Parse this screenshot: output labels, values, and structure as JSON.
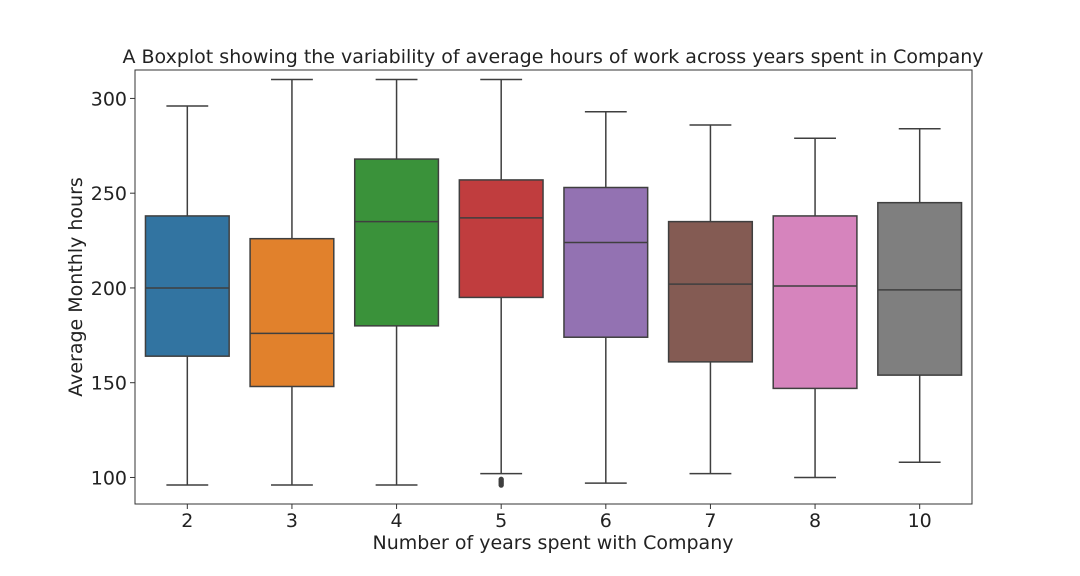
{
  "chart_data": {
    "type": "box",
    "title": "A Boxplot showing the variability of average hours of work across years spent in Company",
    "xlabel": "Number of years spent with Company",
    "ylabel": "Average Monthly hours",
    "ylim": [
      86,
      315
    ],
    "yticks": [
      100,
      150,
      200,
      250,
      300
    ],
    "grid": false,
    "categories": [
      "2",
      "3",
      "4",
      "5",
      "6",
      "7",
      "8",
      "10"
    ],
    "colors": [
      "#3274a1",
      "#e1812c",
      "#3a923a",
      "#c03d3e",
      "#9372b2",
      "#845b53",
      "#d684bd",
      "#7f7f7f"
    ],
    "boxes": [
      {
        "whisker_low": 96,
        "q1": 164,
        "median": 200,
        "q3": 238,
        "whisker_high": 296,
        "outliers": []
      },
      {
        "whisker_low": 96,
        "q1": 148,
        "median": 176,
        "q3": 226,
        "whisker_high": 310,
        "outliers": []
      },
      {
        "whisker_low": 96,
        "q1": 180,
        "median": 235,
        "q3": 268,
        "whisker_high": 310,
        "outliers": []
      },
      {
        "whisker_low": 102,
        "q1": 195,
        "median": 237,
        "q3": 257,
        "whisker_high": 310,
        "outliers": [
          96,
          97,
          98,
          99
        ]
      },
      {
        "whisker_low": 97,
        "q1": 174,
        "median": 224,
        "q3": 253,
        "whisker_high": 293,
        "outliers": []
      },
      {
        "whisker_low": 102,
        "q1": 161,
        "median": 202,
        "q3": 235,
        "whisker_high": 286,
        "outliers": []
      },
      {
        "whisker_low": 100,
        "q1": 147,
        "median": 201,
        "q3": 238,
        "whisker_high": 279,
        "outliers": []
      },
      {
        "whisker_low": 108,
        "q1": 154,
        "median": 199,
        "q3": 245,
        "whisker_high": 284,
        "outliers": []
      }
    ]
  }
}
